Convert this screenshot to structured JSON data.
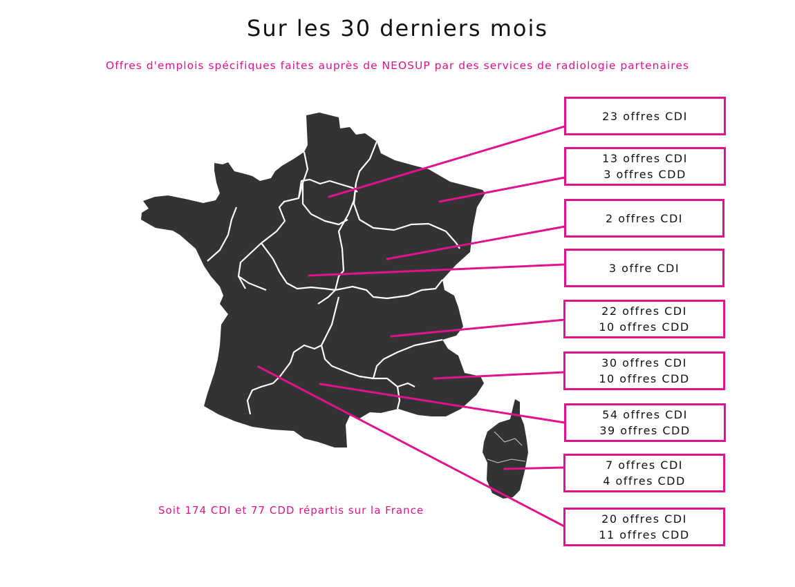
{
  "title": "Sur les 30 derniers mois",
  "subtitle": "Offres d'emplois spécifiques faites auprès de NEOSUP par des services de radiologie partenaires",
  "summary": "Soit 174 CDI et 77 CDD répartis sur la France",
  "colors": {
    "accent": "#e0138c",
    "map_fill": "#333333",
    "border": "#ffffff"
  },
  "regions": [
    {
      "lines": [
        "23 offres CDI"
      ]
    },
    {
      "lines": [
        "13 offres CDI",
        "3 offres CDD"
      ]
    },
    {
      "lines": [
        "2 offres CDI"
      ]
    },
    {
      "lines": [
        "3 offre CDI"
      ]
    },
    {
      "lines": [
        "22 offres CDI",
        "10 offres CDD"
      ]
    },
    {
      "lines": [
        "30 offres CDI",
        "10 offres CDD"
      ]
    },
    {
      "lines": [
        "54 offres CDI",
        "39 offres CDD"
      ]
    },
    {
      "lines": [
        "7 offres CDI",
        "4 offres CDD"
      ]
    },
    {
      "lines": [
        "20 offres CDI",
        "11 offres CDD"
      ]
    }
  ]
}
